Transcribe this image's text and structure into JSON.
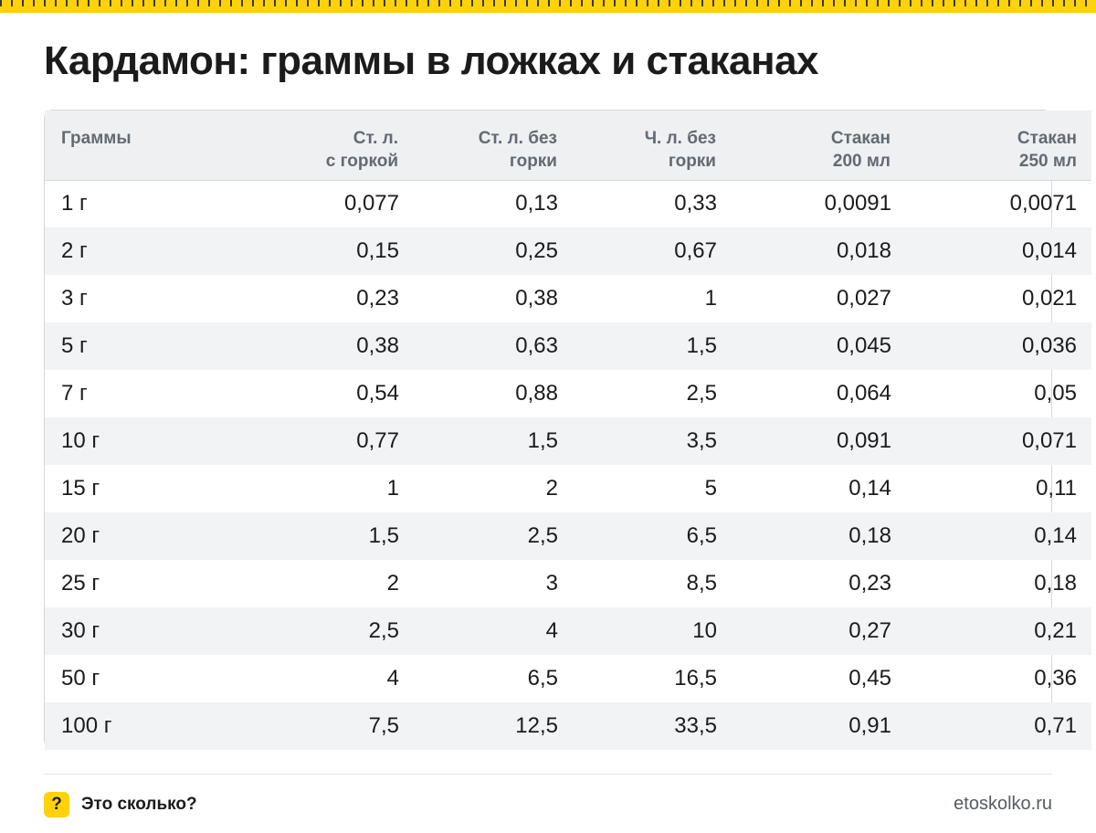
{
  "title": "Кардамон: граммы в ложках и стаканах",
  "colors": {
    "accent": "#ffd20a",
    "header_bg": "#eef0f2",
    "stripe_bg": "#f2f3f5"
  },
  "table": {
    "headers": [
      [
        "Граммы"
      ],
      [
        "Ст. л.",
        "с горкой"
      ],
      [
        "Ст. л. без",
        "горки"
      ],
      [
        "Ч. л. без",
        "горки"
      ],
      [
        "Стакан",
        "200 мл"
      ],
      [
        "Стакан",
        "250 мл"
      ]
    ],
    "rows": [
      [
        "1 г",
        "0,077",
        "0,13",
        "0,33",
        "0,0091",
        "0,0071"
      ],
      [
        "2 г",
        "0,15",
        "0,25",
        "0,67",
        "0,018",
        "0,014"
      ],
      [
        "3 г",
        "0,23",
        "0,38",
        "1",
        "0,027",
        "0,021"
      ],
      [
        "5 г",
        "0,38",
        "0,63",
        "1,5",
        "0,045",
        "0,036"
      ],
      [
        "7 г",
        "0,54",
        "0,88",
        "2,5",
        "0,064",
        "0,05"
      ],
      [
        "10 г",
        "0,77",
        "1,5",
        "3,5",
        "0,091",
        "0,071"
      ],
      [
        "15 г",
        "1",
        "2",
        "5",
        "0,14",
        "0,11"
      ],
      [
        "20 г",
        "1,5",
        "2,5",
        "6,5",
        "0,18",
        "0,14"
      ],
      [
        "25 г",
        "2",
        "3",
        "8,5",
        "0,23",
        "0,18"
      ],
      [
        "30 г",
        "2,5",
        "4",
        "10",
        "0,27",
        "0,21"
      ],
      [
        "50 г",
        "4",
        "6,5",
        "16,5",
        "0,45",
        "0,36"
      ],
      [
        "100 г",
        "7,5",
        "12,5",
        "33,5",
        "0,91",
        "0,71"
      ]
    ]
  },
  "footer": {
    "badge": "?",
    "brand": "Это сколько?",
    "site": "etoskolko.ru",
    "badge_icon": "question-mark-icon"
  }
}
